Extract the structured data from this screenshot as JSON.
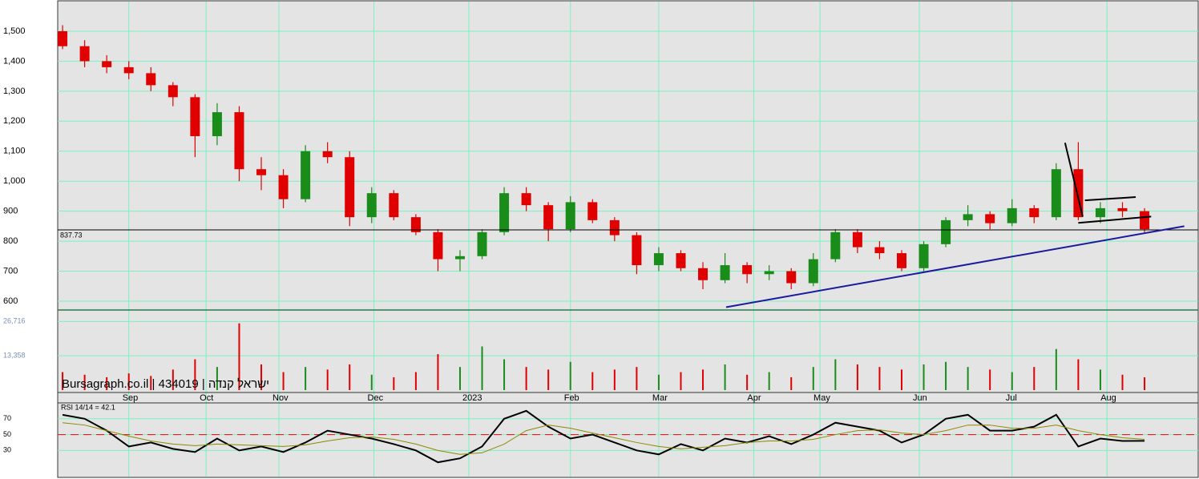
{
  "chart_data": [
    {
      "type": "candlestick",
      "x": [
        0,
        1,
        2,
        3,
        4,
        5,
        6,
        7,
        8,
        9,
        10,
        11,
        12,
        13,
        14,
        15,
        16,
        17,
        18,
        19,
        20,
        21,
        22,
        23,
        24,
        25,
        26,
        27,
        28,
        29,
        30,
        31,
        32,
        33,
        34,
        35,
        36,
        37,
        38,
        39,
        40,
        41,
        42,
        43,
        44,
        45,
        46,
        47,
        48,
        49
      ],
      "xlim": [
        -0.22,
        51.43
      ],
      "open": [
        1500,
        1450,
        1400,
        1380,
        1360,
        1320,
        1280,
        1150,
        1230,
        1040,
        1020,
        940,
        1100,
        1080,
        880,
        960,
        880,
        830,
        740,
        750,
        830,
        960,
        920,
        840,
        930,
        870,
        820,
        720,
        760,
        710,
        670,
        720,
        690,
        700,
        660,
        740,
        830,
        780,
        760,
        710,
        790,
        870,
        890,
        860,
        910,
        880,
        1040,
        880,
        910,
        900
      ],
      "high": [
        1520,
        1470,
        1420,
        1400,
        1380,
        1330,
        1290,
        1260,
        1250,
        1080,
        1040,
        1120,
        1130,
        1100,
        980,
        970,
        890,
        840,
        770,
        840,
        980,
        980,
        930,
        950,
        940,
        880,
        830,
        780,
        770,
        730,
        760,
        730,
        720,
        710,
        760,
        840,
        840,
        800,
        770,
        800,
        880,
        920,
        900,
        940,
        920,
        1060,
        1130,
        930,
        930,
        910
      ],
      "low": [
        1440,
        1380,
        1360,
        1340,
        1300,
        1250,
        1080,
        1120,
        1000,
        970,
        910,
        930,
        1060,
        850,
        860,
        870,
        820,
        700,
        700,
        740,
        820,
        900,
        800,
        830,
        860,
        800,
        690,
        700,
        700,
        640,
        660,
        660,
        670,
        640,
        650,
        730,
        760,
        740,
        700,
        700,
        780,
        850,
        840,
        850,
        860,
        870,
        870,
        860,
        880,
        830
      ],
      "close": [
        1450,
        1400,
        1380,
        1360,
        1320,
        1280,
        1150,
        1230,
        1040,
        1020,
        940,
        1100,
        1080,
        880,
        960,
        880,
        830,
        740,
        750,
        830,
        960,
        920,
        840,
        930,
        870,
        820,
        720,
        760,
        710,
        670,
        720,
        690,
        700,
        660,
        740,
        830,
        780,
        760,
        710,
        790,
        870,
        890,
        860,
        910,
        880,
        1040,
        880,
        910,
        900,
        840
      ],
      "up_color": "#1a8c1a",
      "down_color": "#e00000",
      "ylim": [
        570.6,
        1604
      ],
      "yticks": [
        {
          "value": 600,
          "label": "600"
        },
        {
          "value": 700,
          "label": "700"
        },
        {
          "value": 800,
          "label": "800"
        },
        {
          "value": 900,
          "label": "900"
        },
        {
          "value": 1000,
          "label": "1,000"
        },
        {
          "value": 1100,
          "label": "1,100"
        },
        {
          "value": 1200,
          "label": "1,200"
        },
        {
          "value": 1300,
          "label": "1,300"
        },
        {
          "value": 1400,
          "label": "1,400"
        },
        {
          "value": 1500,
          "label": "1,500"
        }
      ],
      "price_line": {
        "value": 837.73,
        "label": "837.73"
      },
      "trendlines": [
        {
          "color": "#1a1a9c",
          "points": [
            [
              30.05,
              580
            ],
            [
              50.8,
              850
            ]
          ]
        },
        {
          "color": "#000000",
          "points": [
            [
              45.4,
              1128
            ],
            [
              46.2,
              882
            ]
          ]
        },
        {
          "color": "#000000",
          "points": [
            [
              46.3,
              936
            ],
            [
              48.6,
              947
            ]
          ]
        },
        {
          "color": "#000000",
          "points": [
            [
              46.0,
              861
            ],
            [
              49.3,
              882
            ]
          ]
        }
      ],
      "grid": true
    },
    {
      "type": "bar",
      "title": "Bursagraph.co.il | 434019 | ישראל קנדה",
      "values": [
        7000,
        6000,
        5000,
        6500,
        5500,
        8000,
        12000,
        9000,
        26000,
        10000,
        7000,
        9000,
        8000,
        10000,
        6000,
        5000,
        7000,
        14000,
        9000,
        17000,
        12000,
        9000,
        8000,
        11000,
        7000,
        8000,
        9000,
        6000,
        7000,
        8000,
        10000,
        6000,
        7000,
        5000,
        9000,
        12000,
        10000,
        9000,
        8000,
        10000,
        11000,
        9000,
        8000,
        7000,
        9000,
        16000,
        12000,
        8000,
        6000,
        5000
      ],
      "ylim": [
        0,
        31200
      ],
      "yticks": [
        {
          "value": 13358,
          "label": "13,358"
        },
        {
          "value": 26716,
          "label": "26,716"
        }
      ],
      "xticks": [
        {
          "value": 3.0,
          "label": "Sep"
        },
        {
          "value": 6.5,
          "label": "Oct"
        },
        {
          "value": 9.8,
          "label": "Nov"
        },
        {
          "value": 14.1,
          "label": "Dec"
        },
        {
          "value": 18.4,
          "label": "2023"
        },
        {
          "value": 23.0,
          "label": "Feb"
        },
        {
          "value": 27.0,
          "label": "Mar"
        },
        {
          "value": 31.3,
          "label": "Apr"
        },
        {
          "value": 34.3,
          "label": "May"
        },
        {
          "value": 38.8,
          "label": "Jun"
        },
        {
          "value": 43.0,
          "label": "Jul"
        },
        {
          "value": 47.3,
          "label": "Aug"
        }
      ]
    },
    {
      "type": "line",
      "title": "RSI 14/14 = 42.1",
      "series": [
        {
          "name": "RSI",
          "color": "#000000",
          "values": [
            75,
            70,
            55,
            35,
            40,
            32,
            28,
            45,
            30,
            35,
            28,
            40,
            55,
            50,
            45,
            38,
            30,
            15,
            20,
            35,
            70,
            80,
            60,
            45,
            50,
            40,
            30,
            25,
            38,
            30,
            45,
            40,
            48,
            38,
            50,
            65,
            60,
            55,
            40,
            50,
            70,
            75,
            55,
            55,
            60,
            75,
            35,
            45,
            42,
            42.1
          ]
        },
        {
          "name": "MA",
          "color": "#8a8a00",
          "values": [
            65,
            62,
            55,
            48,
            42,
            38,
            36,
            38,
            37,
            36,
            35,
            37,
            42,
            46,
            47,
            44,
            38,
            30,
            25,
            27,
            38,
            55,
            62,
            58,
            52,
            46,
            40,
            35,
            32,
            34,
            36,
            40,
            42,
            42,
            44,
            50,
            55,
            56,
            52,
            50,
            55,
            62,
            62,
            58,
            58,
            62,
            55,
            50,
            46,
            44
          ]
        }
      ],
      "ylim": [
        0,
        90
      ],
      "yticks": [
        30,
        50,
        70
      ],
      "reference_line": 50
    }
  ]
}
